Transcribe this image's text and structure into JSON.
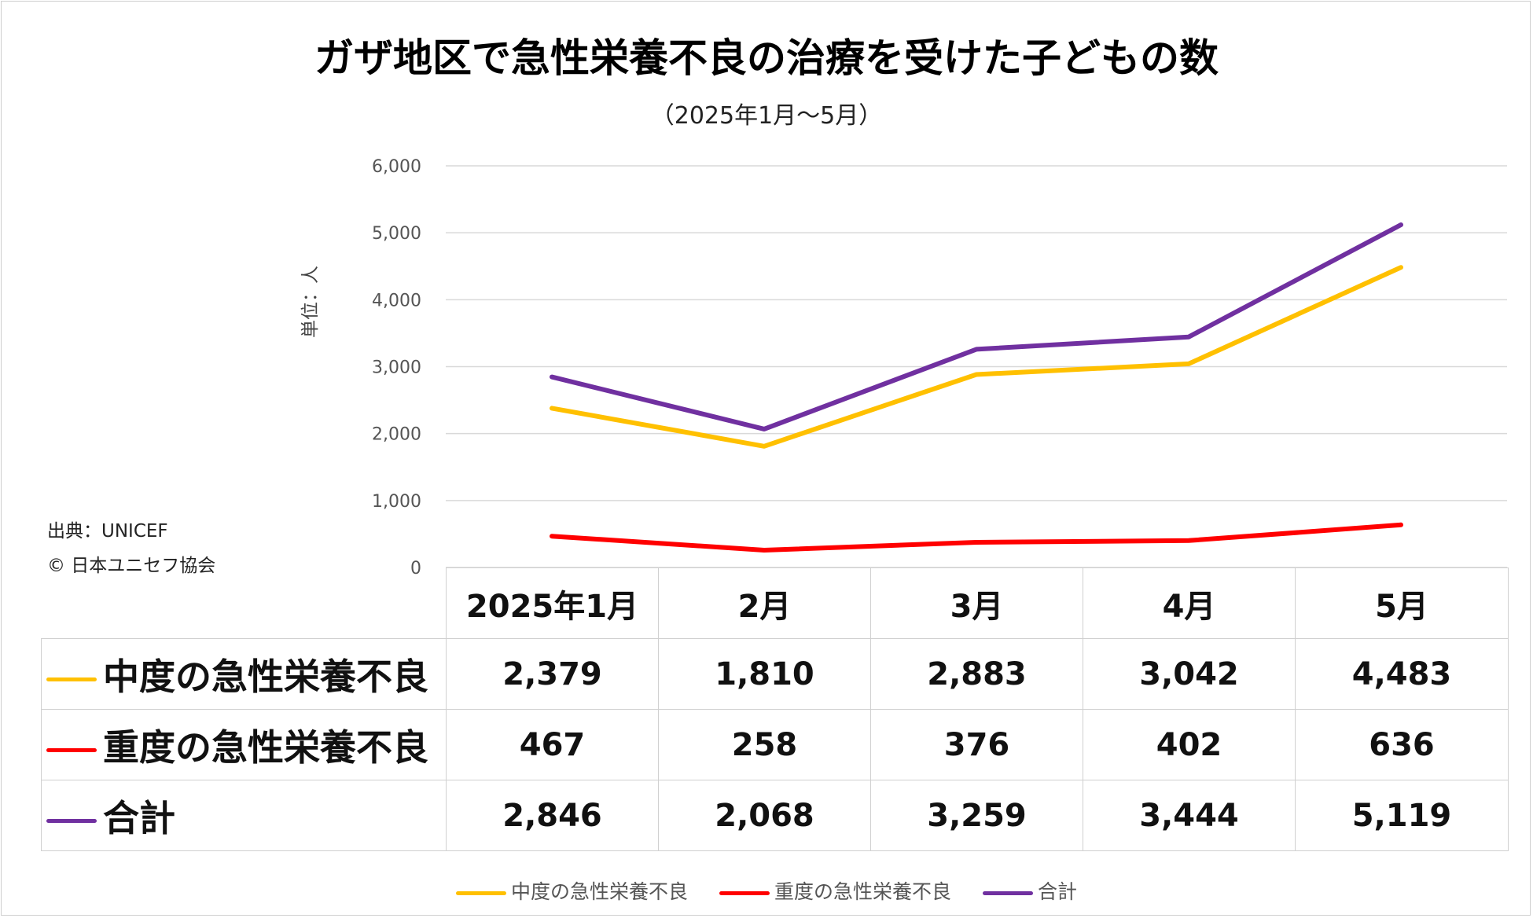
{
  "title": "ガザ地区で急性栄養不良の治療を受けた子どもの数",
  "subtitle": "（2025年1月～5月）",
  "source": {
    "line1": "出典：UNICEF",
    "line2": "© 日本ユニセフ協会"
  },
  "chart_data": {
    "type": "line",
    "title": "ガザ地区で急性栄養不良の治療を受けた子どもの数",
    "ylabel": "単位：人",
    "xlabel": "",
    "ylim": [
      0,
      6000
    ],
    "yticks": [
      "0",
      "1,000",
      "2,000",
      "3,000",
      "4,000",
      "5,000",
      "6,000"
    ],
    "categories": [
      "2025年1月",
      "2月",
      "3月",
      "4月",
      "5月"
    ],
    "series": [
      {
        "name": "中度の急性栄養不良",
        "color": "#FFC000",
        "values": [
          2379,
          1810,
          2883,
          3042,
          4483
        ],
        "labels": [
          "2,379",
          "1,810",
          "2,883",
          "3,042",
          "4,483"
        ]
      },
      {
        "name": "重度の急性栄養不良",
        "color": "#FF0000",
        "values": [
          467,
          258,
          376,
          402,
          636
        ],
        "labels": [
          "467",
          "258",
          "376",
          "402",
          "636"
        ]
      },
      {
        "name": "合計",
        "color": "#7030A0",
        "values": [
          2846,
          2068,
          3259,
          3444,
          5119
        ],
        "labels": [
          "2,846",
          "2,068",
          "3,259",
          "3,444",
          "5,119"
        ]
      }
    ],
    "legend": "bottom",
    "grid": true
  }
}
